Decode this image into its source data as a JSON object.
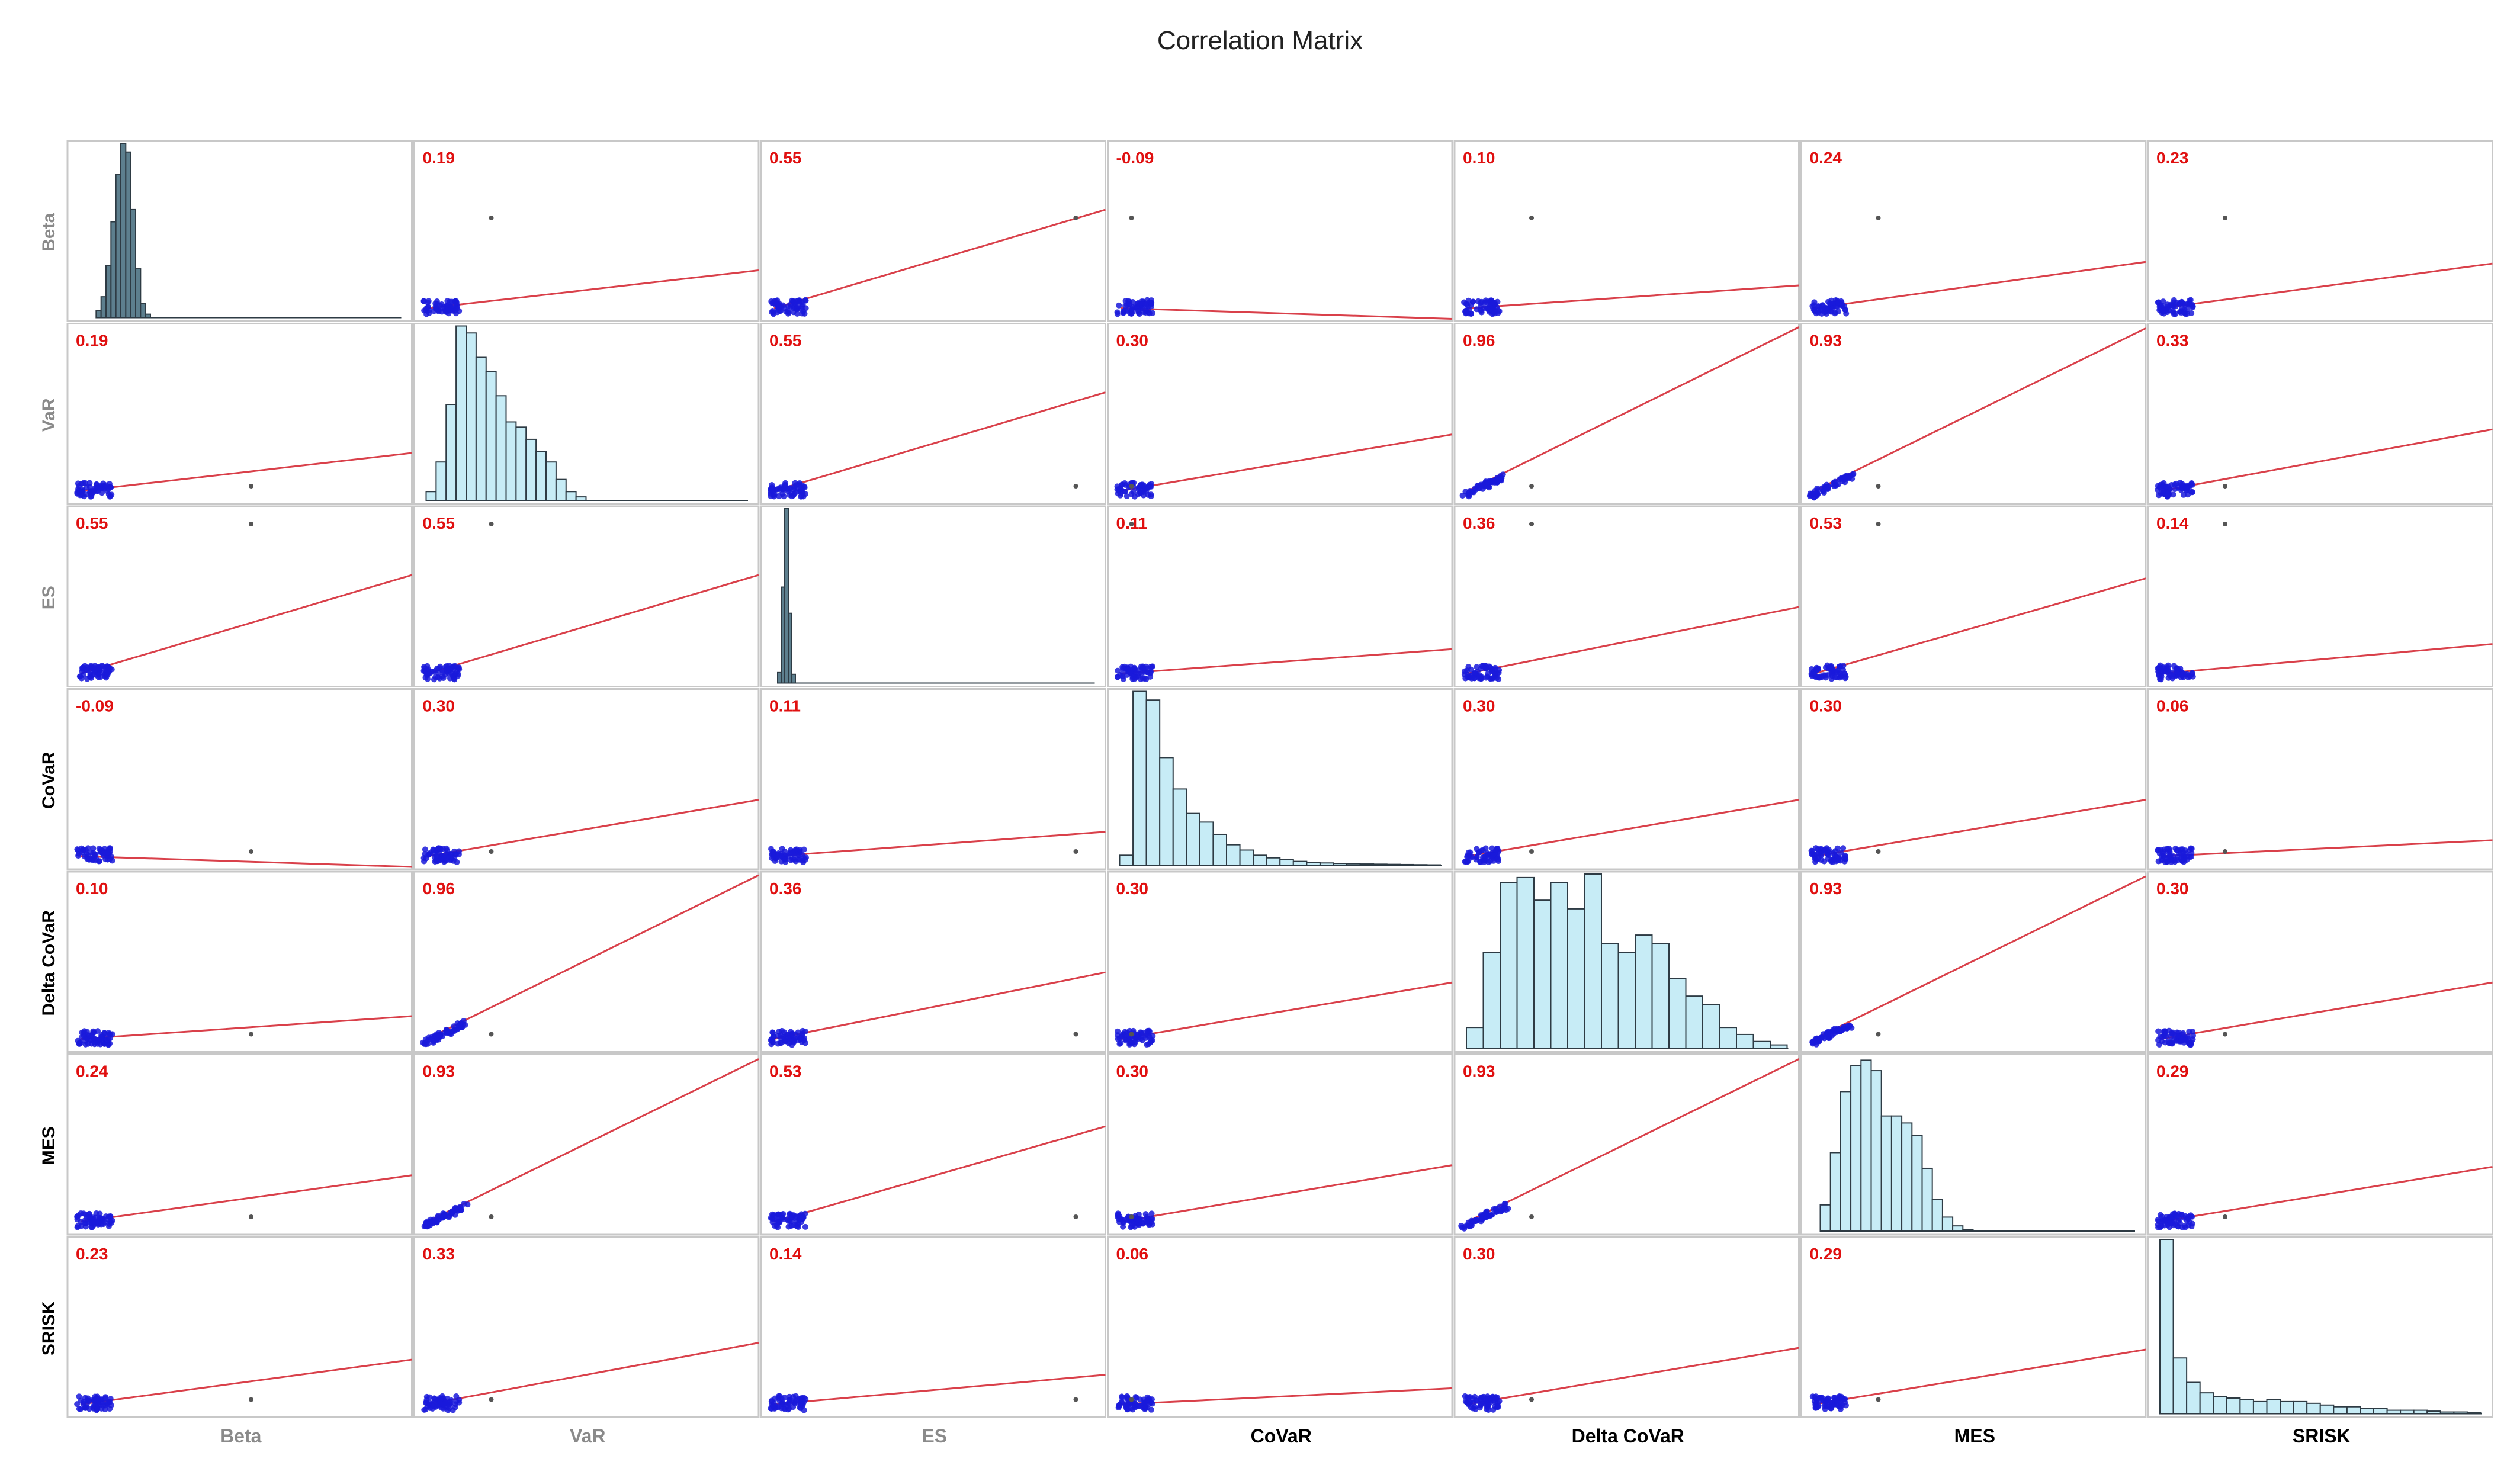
{
  "chart_data": {
    "type": "scatter",
    "title": "Correlation Matrix",
    "variables": [
      "Beta",
      "VaR",
      "ES",
      "CoVaR",
      "Delta CoVaR",
      "MES",
      "SRISK"
    ],
    "correlations": [
      [
        null,
        "0.19",
        "0.55",
        "-0.09",
        "0.10",
        "0.24",
        "0.23"
      ],
      [
        "0.19",
        null,
        "0.55",
        "0.30",
        "0.96",
        "0.93",
        "0.33"
      ],
      [
        "0.55",
        "0.55",
        null,
        "0.11",
        "0.36",
        "0.53",
        "0.14"
      ],
      [
        "-0.09",
        "0.30",
        "0.11",
        null,
        "0.30",
        "0.30",
        "0.06"
      ],
      [
        "0.10",
        "0.96",
        "0.36",
        "0.30",
        null,
        "0.93",
        "0.30"
      ],
      [
        "0.24",
        "0.93",
        "0.53",
        "0.30",
        "0.93",
        null,
        "0.29"
      ],
      [
        "0.23",
        "0.33",
        "0.14",
        "0.06",
        "0.30",
        "0.29",
        null
      ]
    ],
    "histograms": {
      "Beta": [
        0,
        0.04,
        0.12,
        0.3,
        0.55,
        0.82,
        1.0,
        0.95,
        0.62,
        0.28,
        0.08,
        0.02
      ],
      "VaR": [
        0.05,
        0.22,
        0.55,
        1.0,
        0.96,
        0.82,
        0.74,
        0.6,
        0.45,
        0.42,
        0.35,
        0.28,
        0.22,
        0.12,
        0.05,
        0.02
      ],
      "ES": [
        0.06,
        0.55,
        1.0,
        0.4,
        0.05
      ],
      "CoVaR": [
        0.06,
        1.0,
        0.95,
        0.62,
        0.44,
        0.3,
        0.25,
        0.18,
        0.12,
        0.09,
        0.06,
        0.045,
        0.035,
        0.025,
        0.02,
        0.016,
        0.013,
        0.011,
        0.01,
        0.009,
        0.008,
        0.007,
        0.006,
        0.005
      ],
      "Delta CoVaR": [
        0.12,
        0.55,
        0.95,
        0.98,
        0.85,
        0.95,
        0.8,
        1.0,
        0.6,
        0.55,
        0.65,
        0.6,
        0.4,
        0.3,
        0.25,
        0.12,
        0.08,
        0.04,
        0.02
      ],
      "MES": [
        0.15,
        0.45,
        0.8,
        0.95,
        0.98,
        0.92,
        0.66,
        0.66,
        0.62,
        0.55,
        0.36,
        0.18,
        0.08,
        0.03,
        0.01
      ],
      "SRISK": [
        1.0,
        0.32,
        0.18,
        0.12,
        0.1,
        0.09,
        0.08,
        0.07,
        0.08,
        0.07,
        0.07,
        0.06,
        0.05,
        0.04,
        0.04,
        0.03,
        0.03,
        0.02,
        0.02,
        0.02,
        0.015,
        0.01,
        0.01,
        0.005
      ]
    },
    "grid": false
  }
}
